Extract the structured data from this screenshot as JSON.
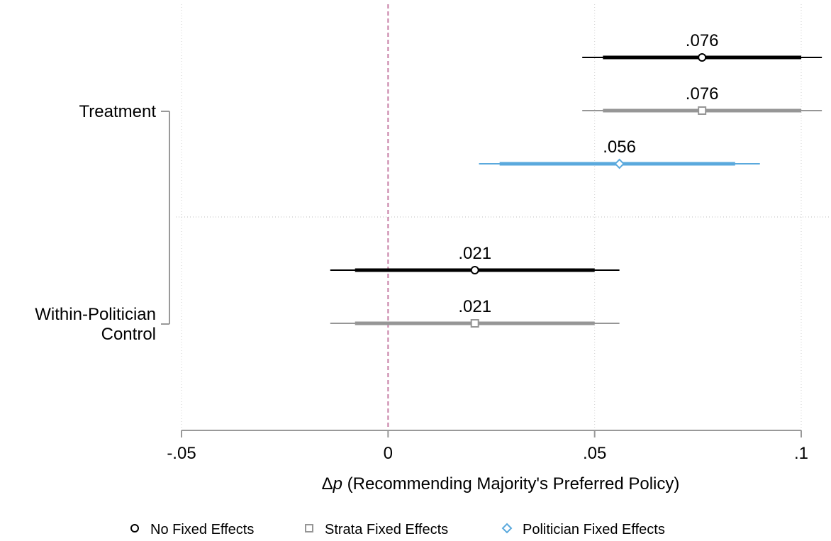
{
  "chart_data": {
    "type": "coefficient-plot",
    "title": "",
    "xlabel_prefix": "Δ",
    "xlabel_var": "p",
    "xlabel_rest": " (Recommending Majority's Preferred Policy)",
    "ylabel": "",
    "xlim": [
      -0.05,
      0.1
    ],
    "xticks": [
      {
        "value": -0.05,
        "label": "-.05"
      },
      {
        "value": 0,
        "label": "0"
      },
      {
        "value": 0.05,
        "label": ".05"
      },
      {
        "value": 0.1,
        "label": ".1"
      }
    ],
    "reference_line": {
      "value": 0,
      "color": "#c77fa6",
      "style": "dashed"
    },
    "grid": true,
    "groups": [
      {
        "label_lines": [
          "Treatment"
        ]
      },
      {
        "label_lines": [
          "Within-Politician",
          "Control"
        ]
      }
    ],
    "series": [
      {
        "name": "No Fixed Effects",
        "marker": "circle",
        "color": "#000000"
      },
      {
        "name": "Strata Fixed Effects",
        "marker": "square",
        "color": "#969696"
      },
      {
        "name": "Politician Fixed Effects",
        "marker": "diamond",
        "color": "#5aa9dd"
      }
    ],
    "estimates": [
      {
        "group": 0,
        "series": 0,
        "estimate": 0.076,
        "label": ".076",
        "ci90": [
          0.052,
          0.1
        ],
        "ci95": [
          0.047,
          0.105
        ]
      },
      {
        "group": 0,
        "series": 1,
        "estimate": 0.076,
        "label": ".076",
        "ci90": [
          0.052,
          0.1
        ],
        "ci95": [
          0.047,
          0.105
        ]
      },
      {
        "group": 0,
        "series": 2,
        "estimate": 0.056,
        "label": ".056",
        "ci90": [
          0.027,
          0.084
        ],
        "ci95": [
          0.022,
          0.09
        ]
      },
      {
        "group": 1,
        "series": 0,
        "estimate": 0.021,
        "label": ".021",
        "ci90": [
          -0.008,
          0.05
        ],
        "ci95": [
          -0.014,
          0.056
        ]
      },
      {
        "group": 1,
        "series": 1,
        "estimate": 0.021,
        "label": ".021",
        "ci90": [
          -0.008,
          0.05
        ],
        "ci95": [
          -0.014,
          0.056
        ]
      }
    ],
    "legend_position": "bottom"
  }
}
